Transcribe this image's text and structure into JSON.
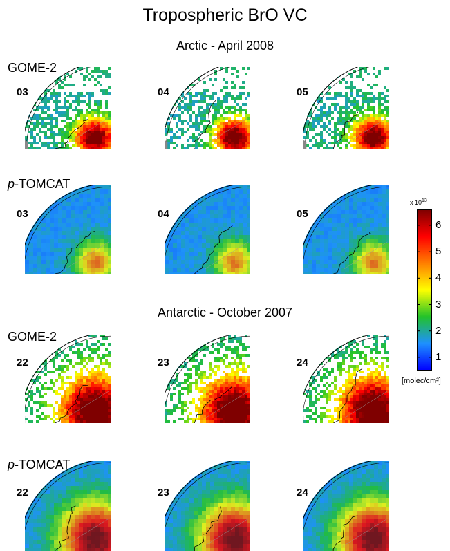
{
  "title": "Tropospheric BrO VC",
  "sections": [
    {
      "title": "Arctic - April 2008",
      "rows": [
        {
          "prefix": "",
          "label": "GOME-2",
          "kind": "gome",
          "days": [
            "03",
            "04",
            "05"
          ]
        },
        {
          "prefix": "p",
          "label": "-TOMCAT",
          "kind": "model",
          "days": [
            "03",
            "04",
            "05"
          ]
        }
      ]
    },
    {
      "title": "Antarctic - October 2007",
      "rows": [
        {
          "prefix": "",
          "label": "GOME-2",
          "kind": "gome",
          "days": [
            "22",
            "23",
            "24"
          ]
        },
        {
          "prefix": "p",
          "label": "-TOMCAT",
          "kind": "model",
          "days": [
            "22",
            "23",
            "24"
          ]
        }
      ]
    }
  ],
  "colorbar": {
    "ticks": [
      "6",
      "5",
      "4",
      "3",
      "2",
      "1"
    ],
    "range": [
      0.5,
      6.6
    ],
    "multiplier": "x 10",
    "exponent": "13",
    "unit": "[molec/cm²]",
    "colors": [
      "#0000ff",
      "#1e90ff",
      "#22c22a",
      "#ffff00",
      "#ff7f00",
      "#ff0000",
      "#7f0000"
    ]
  }
}
